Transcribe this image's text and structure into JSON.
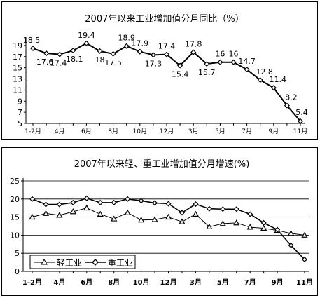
{
  "colors": {
    "line": "#000000",
    "grid": "#000000",
    "background": "#ffffff"
  },
  "chart_data": [
    {
      "type": "line",
      "title": "2007年以来工业增加值分月同比（%）",
      "categories": [
        "1-2月",
        "3月",
        "4月",
        "5月",
        "6月",
        "7月",
        "8月",
        "9月",
        "10月",
        "11月",
        "12月",
        "1-2月",
        "3月",
        "4月",
        "5月",
        "6月",
        "7月",
        "8月",
        "9月",
        "10月",
        "11月"
      ],
      "tick_labels": [
        "1-2月",
        "4月",
        "6月",
        "8月",
        "10月",
        "12月",
        "3月",
        "5月",
        "7月",
        "9月",
        "11月"
      ],
      "y_ticks": [
        5,
        7,
        9,
        11,
        13,
        15,
        17,
        19
      ],
      "ylim": [
        5,
        20
      ],
      "grid": false,
      "series": [
        {
          "marker": "diamond",
          "values": [
            18.5,
            17.6,
            17.4,
            18.1,
            19.4,
            18,
            17.5,
            18.9,
            17.9,
            17.3,
            17.4,
            15.4,
            17.8,
            15.7,
            16,
            16,
            14.7,
            12.8,
            11.4,
            8.2,
            5.4
          ],
          "labels": [
            "18.5",
            "17.6",
            "17.4",
            "18.1",
            "19.4",
            "18",
            "17.5",
            "18.9",
            "17.9",
            "17.3",
            "17.4",
            "15.4",
            "17.8",
            "15.7",
            "16",
            "16",
            "14.7",
            "12.8",
            "11.4",
            "8.2",
            "5.4"
          ]
        }
      ]
    },
    {
      "type": "line",
      "title": "2007年以来轻、重工业增加值分月增速(%)",
      "categories": [
        "1-2月",
        "3月",
        "4月",
        "5月",
        "6月",
        "7月",
        "8月",
        "9月",
        "10月",
        "11月",
        "12月",
        "1-2月",
        "3月",
        "4月",
        "5月",
        "6月",
        "7月",
        "8月",
        "9月",
        "10月",
        "11月"
      ],
      "tick_labels": [
        "1-2月",
        "4月",
        "6月",
        "8月",
        "10月",
        "12月",
        "3月",
        "5月",
        "7月",
        "9月",
        "11月"
      ],
      "y_ticks": [
        0,
        5,
        10,
        15,
        20,
        25
      ],
      "ylim": [
        0,
        25
      ],
      "grid": true,
      "legend_position": "bottom-left",
      "series": [
        {
          "name": "轻工业",
          "marker": "triangle",
          "values": [
            15,
            16,
            15.5,
            16.5,
            17.5,
            15.8,
            14.5,
            16.2,
            14.2,
            14.3,
            15,
            13.7,
            15.8,
            12.3,
            13.2,
            13.4,
            12.2,
            11.9,
            11.3,
            10.5,
            10
          ]
        },
        {
          "name": "重工业",
          "marker": "diamond",
          "values": [
            20,
            18.5,
            18.5,
            19,
            20.2,
            19,
            19,
            20,
            19.5,
            18.9,
            18.7,
            16.2,
            18.6,
            17.3,
            17.2,
            17.2,
            15.8,
            13.4,
            11.5,
            7.2,
            3.3
          ]
        }
      ]
    }
  ]
}
